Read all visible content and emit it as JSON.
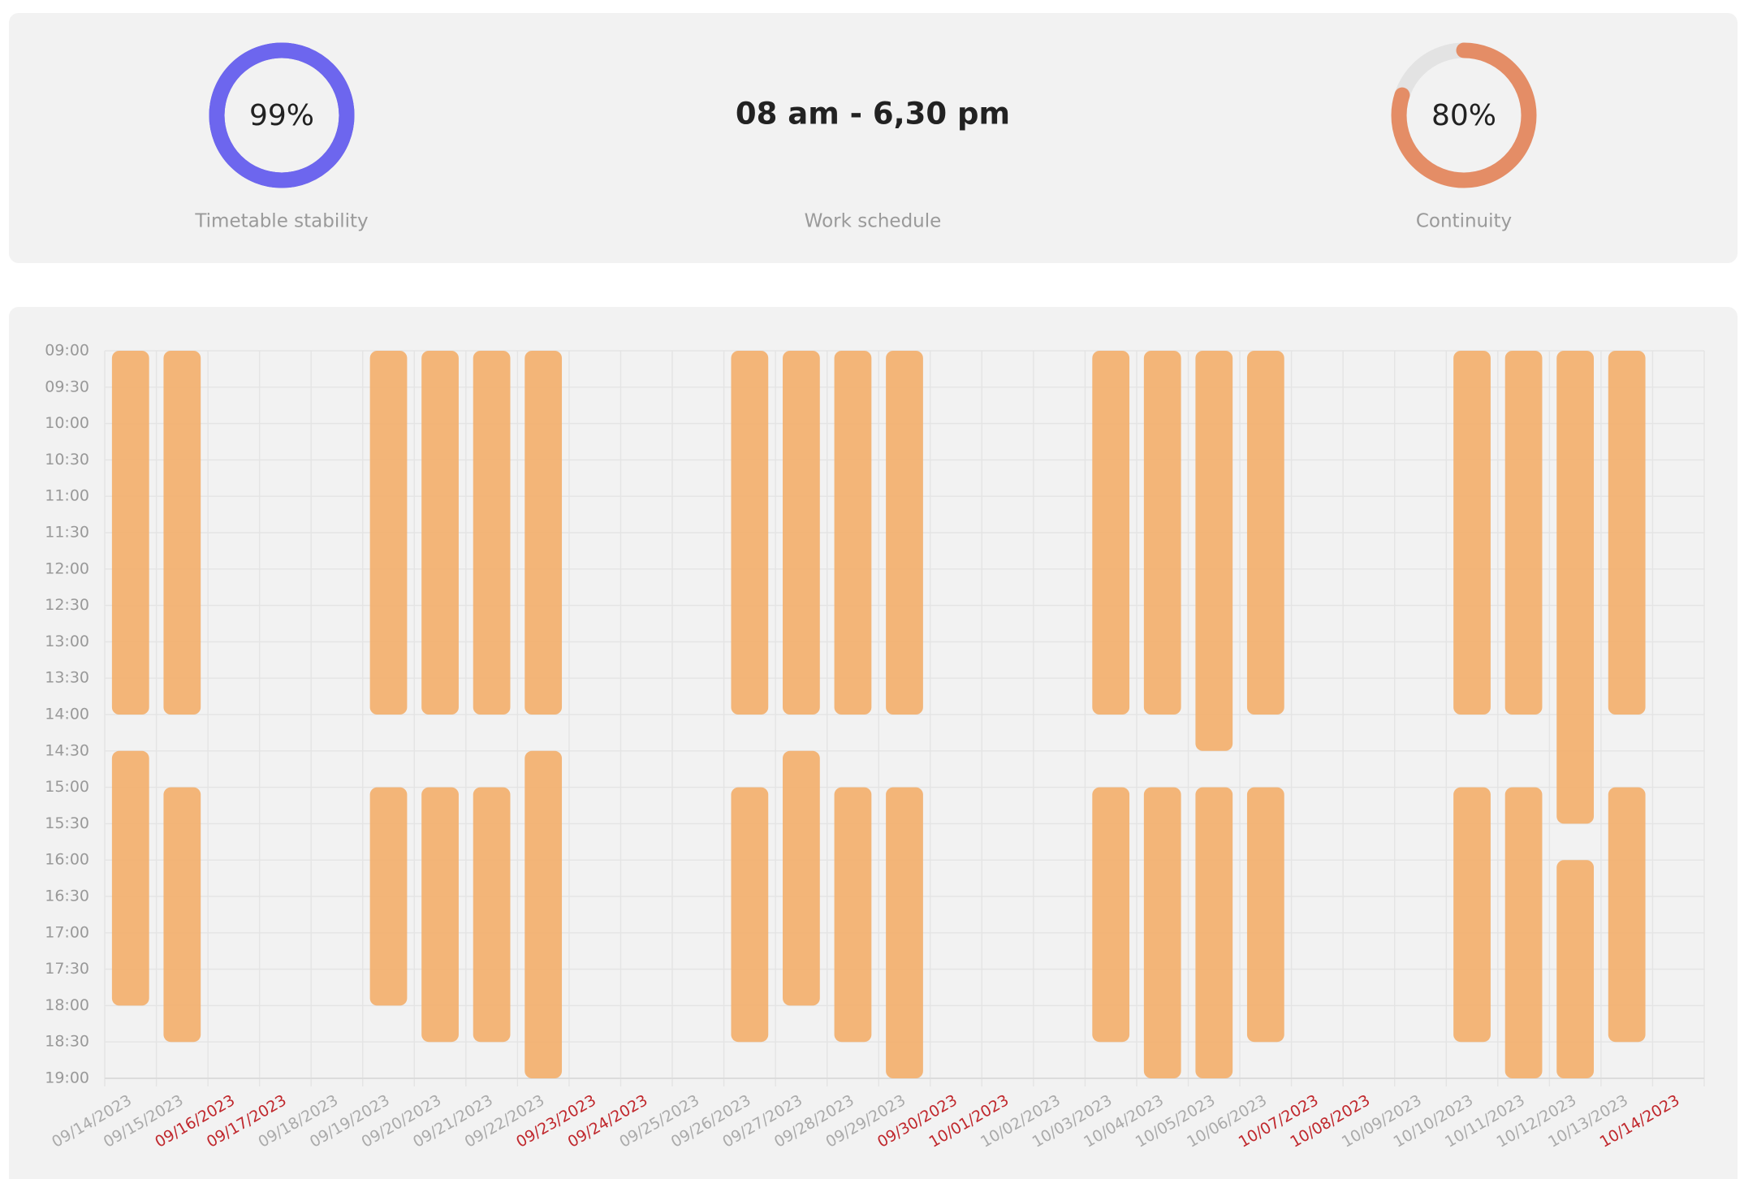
{
  "summary": {
    "cards": [
      {
        "value": 99,
        "value_label": "99%",
        "range": [
          0,
          100
        ],
        "label": "Timetable stability",
        "color": "#6d66ee",
        "track_color": "#5a55d8"
      },
      {
        "text": "08 am - 6,30 pm",
        "label": "Work schedule"
      },
      {
        "value": 80,
        "value_label": "80%",
        "range": [
          0,
          100
        ],
        "label": "Continuity",
        "color": "#e48d66",
        "track_color": "#e3e3e3"
      }
    ]
  },
  "chart_data": {
    "type": "range_bar",
    "categories": [
      "09/14/2023",
      "09/15/2023",
      "09/16/2023",
      "09/17/2023",
      "09/18/2023",
      "09/19/2023",
      "09/20/2023",
      "09/21/2023",
      "09/22/2023",
      "09/23/2023",
      "09/24/2023",
      "09/25/2023",
      "09/26/2023",
      "09/27/2023",
      "09/28/2023",
      "09/29/2023",
      "09/30/2023",
      "10/01/2023",
      "10/02/2023",
      "10/03/2023",
      "10/04/2023",
      "10/05/2023",
      "10/06/2023",
      "10/07/2023",
      "10/08/2023",
      "10/09/2023",
      "10/10/2023",
      "10/11/2023",
      "10/12/2023",
      "10/13/2023",
      "10/14/2023"
    ],
    "category_label_colors": [
      "#aaaaaa",
      "#aaaaaa",
      "#c0282d",
      "#c0282d",
      "#aaaaaa",
      "#aaaaaa",
      "#aaaaaa",
      "#aaaaaa",
      "#aaaaaa",
      "#c0282d",
      "#c0282d",
      "#aaaaaa",
      "#aaaaaa",
      "#aaaaaa",
      "#aaaaaa",
      "#aaaaaa",
      "#c0282d",
      "#c0282d",
      "#aaaaaa",
      "#aaaaaa",
      "#aaaaaa",
      "#aaaaaa",
      "#aaaaaa",
      "#c0282d",
      "#c0282d",
      "#aaaaaa",
      "#aaaaaa",
      "#aaaaaa",
      "#aaaaaa",
      "#aaaaaa",
      "#c0282d"
    ],
    "series": [
      {
        "color": "#f2b171",
        "start": [
          9,
          9,
          null,
          null,
          null,
          9,
          9,
          9,
          9,
          null,
          null,
          null,
          9,
          9,
          9,
          9,
          null,
          null,
          null,
          9,
          9,
          9,
          9,
          null,
          null,
          null,
          9,
          9,
          9,
          9,
          null
        ],
        "end": [
          14,
          14,
          null,
          null,
          null,
          14,
          14,
          14,
          14,
          null,
          null,
          null,
          14,
          14,
          14,
          14,
          null,
          null,
          null,
          14,
          14,
          14.5,
          14,
          null,
          null,
          null,
          14,
          14,
          15.5,
          14,
          null
        ]
      },
      {
        "color": "#f2b171",
        "start": [
          14.5,
          15,
          null,
          null,
          null,
          15,
          15,
          15,
          14.5,
          null,
          null,
          null,
          15,
          14.5,
          15,
          15,
          null,
          null,
          null,
          15,
          15,
          15,
          15,
          null,
          null,
          null,
          15,
          15,
          16,
          15,
          null
        ],
        "end": [
          18,
          18.5,
          null,
          null,
          null,
          18,
          18.5,
          18.5,
          19,
          null,
          null,
          null,
          18.5,
          18,
          18.5,
          19,
          null,
          null,
          null,
          18.5,
          19,
          19,
          18.5,
          null,
          null,
          null,
          18.5,
          19,
          19,
          18.5,
          null
        ]
      }
    ],
    "ylim": [
      19,
      9
    ],
    "yticks": [
      {
        "value": 9,
        "label": "09:00"
      },
      {
        "value": 9.5,
        "label": "09:30"
      },
      {
        "value": 10,
        "label": "10:00"
      },
      {
        "value": 10.5,
        "label": "10:30"
      },
      {
        "value": 11,
        "label": "11:00"
      },
      {
        "value": 11.5,
        "label": "11:30"
      },
      {
        "value": 12,
        "label": "12:00"
      },
      {
        "value": 12.5,
        "label": "12:30"
      },
      {
        "value": 13,
        "label": "13:00"
      },
      {
        "value": 13.5,
        "label": "13:30"
      },
      {
        "value": 14,
        "label": "14:00"
      },
      {
        "value": 14.5,
        "label": "14:30"
      },
      {
        "value": 15,
        "label": "15:00"
      },
      {
        "value": 15.5,
        "label": "15:30"
      },
      {
        "value": 16,
        "label": "16:00"
      },
      {
        "value": 16.5,
        "label": "16:30"
      },
      {
        "value": 17,
        "label": "17:00"
      },
      {
        "value": 17.5,
        "label": "17:30"
      },
      {
        "value": 18,
        "label": "18:00"
      },
      {
        "value": 18.5,
        "label": "18:30"
      },
      {
        "value": 19,
        "label": "19:00"
      }
    ],
    "grid": true
  }
}
